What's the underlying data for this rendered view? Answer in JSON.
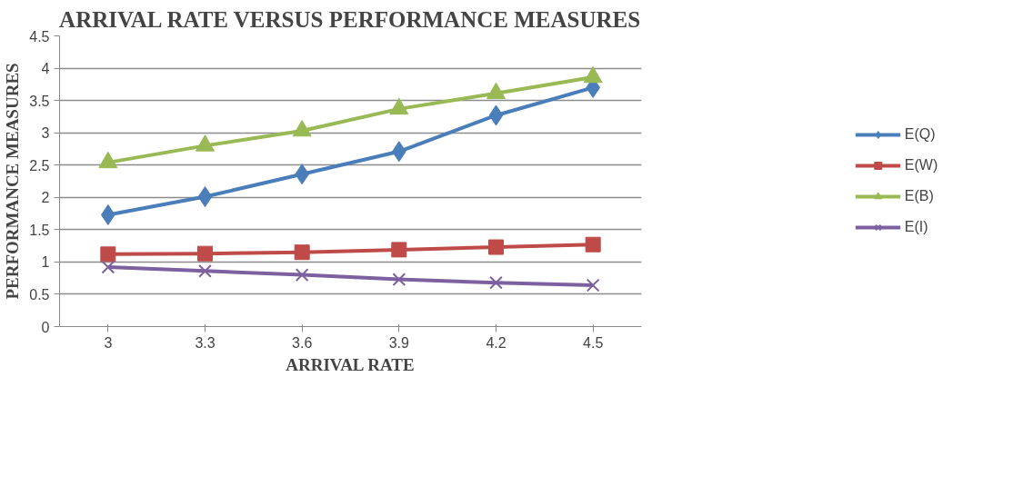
{
  "chart_data": {
    "type": "line",
    "title": "ARRIVAL RATE VERSUS PERFORMANCE MEASURES",
    "xlabel": "ARRIVAL RATE",
    "ylabel": "PERFORMANCE MEASURES",
    "categories": [
      "3",
      "3.3",
      "3.6",
      "3.9",
      "4.2",
      "4.5"
    ],
    "series": [
      {
        "name": "E(Q)",
        "color": "#4a7ebb",
        "marker": "diamond",
        "values": [
          1.73,
          2.01,
          2.36,
          2.71,
          3.27,
          3.7
        ]
      },
      {
        "name": "E(W)",
        "color": "#be4b48",
        "marker": "square",
        "values": [
          1.12,
          1.13,
          1.15,
          1.19,
          1.23,
          1.27
        ]
      },
      {
        "name": "E(B)",
        "color": "#98b954",
        "marker": "triangle",
        "values": [
          2.54,
          2.8,
          3.03,
          3.37,
          3.61,
          3.86
        ]
      },
      {
        "name": "E(I)",
        "color": "#7d60a0",
        "marker": "cross",
        "values": [
          0.92,
          0.86,
          0.8,
          0.73,
          0.68,
          0.64
        ]
      }
    ],
    "ylim": [
      0,
      4.5
    ],
    "yticks": [
      0,
      0.5,
      1,
      1.5,
      2,
      2.5,
      3,
      3.5,
      4,
      4.5
    ],
    "grid": "y",
    "legend": "right",
    "line_style": "solid"
  }
}
